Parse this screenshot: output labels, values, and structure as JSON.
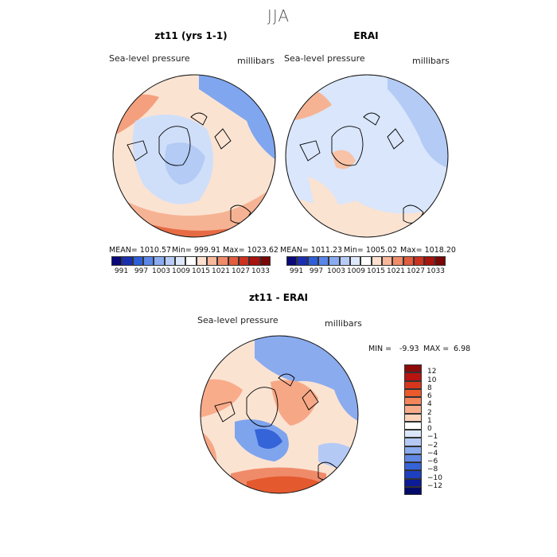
{
  "page_title": "JJA",
  "panels": {
    "left": {
      "title": "zt11 (yrs 1-1)",
      "variable": "Sea-level pressure",
      "units": "millibars",
      "mean": "MEAN= 1010.57",
      "min": "Min= 999.91",
      "max": "Max= 1023.62"
    },
    "right": {
      "title": "ERAI",
      "variable": "Sea-level pressure",
      "units": "millibars",
      "mean": "MEAN= 1011.23",
      "min": "Min= 1005.02",
      "max": "Max= 1018.20"
    },
    "diff": {
      "title": "zt11 - ERAI",
      "variable": "Sea-level pressure",
      "units": "millibars",
      "min_label": "MIN =",
      "min_value": "-9.93",
      "max_label": "MAX =",
      "max_value": "6.98"
    }
  },
  "abs_colorbar": {
    "labels": [
      "991",
      "997",
      "1003",
      "1009",
      "1015",
      "1021",
      "1027",
      "1033"
    ],
    "colors": [
      "#08087a",
      "#1a2fb0",
      "#2e5fd8",
      "#5a86ea",
      "#8aabf2",
      "#b6ccf7",
      "#dde8fb",
      "#ffffff",
      "#fde0cf",
      "#f8b79a",
      "#f08b6a",
      "#e25c3e",
      "#cc3220",
      "#a8130d",
      "#7a0606"
    ]
  },
  "diff_colorbar": {
    "labels": [
      "12",
      "10",
      "8",
      "6",
      "4",
      "2",
      "1",
      "0",
      "−1",
      "−2",
      "−4",
      "−6",
      "−8",
      "−10",
      "−12"
    ],
    "colors": [
      "#8c0a0a",
      "#b81410",
      "#d8361c",
      "#ec5a2c",
      "#f5855a",
      "#f9ac8a",
      "#fcd3bb",
      "#ffffff",
      "#dbe6fb",
      "#b4caf5",
      "#8aabee",
      "#5f88e4",
      "#3563d8",
      "#1e3fbf",
      "#0c1b96",
      "#050a6a"
    ]
  },
  "map_colors": {
    "abs_low": "#b9d2f7",
    "abs_mid": "#d9e6fb",
    "abs_high": "#f8c9ad",
    "abs_higher": "#f09a78",
    "diff_pos": "#f6a886",
    "diff_neg": "#7ea4ee",
    "diff_strong_neg": "#1f41c4",
    "diff_strong_pos": "#e45a2e"
  }
}
